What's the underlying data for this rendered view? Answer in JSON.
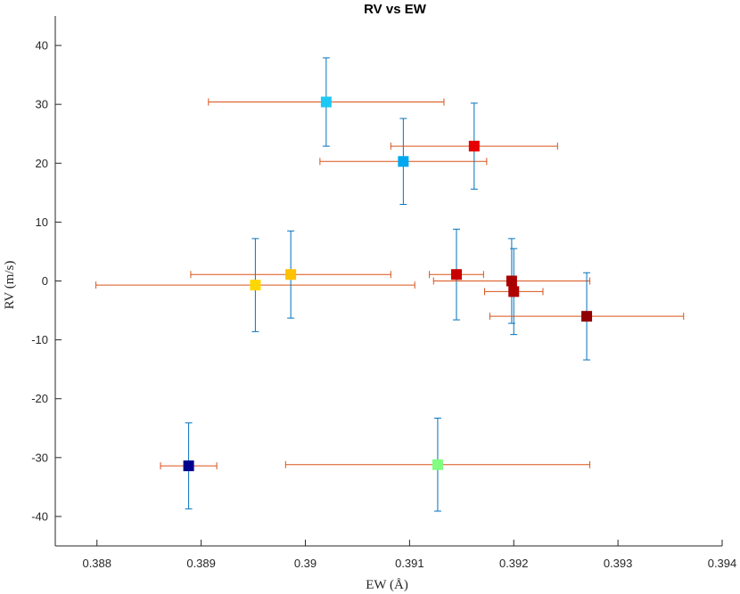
{
  "chart_data": {
    "type": "scatter",
    "title": "RV vs EW",
    "xlabel": "EW (Å)",
    "ylabel": "RV (m/s)",
    "xlim": [
      0.3876,
      0.394
    ],
    "ylim": [
      -45,
      45
    ],
    "xticks": [
      0.388,
      0.389,
      0.39,
      0.391,
      0.392,
      0.393,
      0.394
    ],
    "xtick_labels": [
      "0.388",
      "0.389",
      "0.39",
      "0.391",
      "0.392",
      "0.393",
      "0.394"
    ],
    "yticks": [
      -40,
      -30,
      -20,
      -10,
      0,
      10,
      20,
      30,
      40
    ],
    "ytick_labels": [
      "-40",
      "-30",
      "-20",
      "-10",
      "0",
      "10",
      "20",
      "30",
      "40"
    ],
    "grid": false,
    "errorbar_colors": {
      "x": "#D95319",
      "y": "#0072BD"
    },
    "points": [
      {
        "x": 0.3902,
        "y": 30.4,
        "xerr": 1.13,
        "yerr": 7.5,
        "color": "#1EC8F5"
      },
      {
        "x": 0.39094,
        "y": 20.3,
        "xerr": 0.8,
        "yerr": 7.3,
        "color": "#00A8F0"
      },
      {
        "x": 0.39162,
        "y": 22.9,
        "xerr": 0.8,
        "yerr": 7.3,
        "color": "#E60000"
      },
      {
        "x": 0.38952,
        "y": -0.7,
        "xerr": 1.53,
        "yerr": 7.9,
        "color": "#FFD700"
      },
      {
        "x": 0.38986,
        "y": 1.1,
        "xerr": 0.96,
        "yerr": 7.4,
        "color": "#FFC200"
      },
      {
        "x": 0.39145,
        "y": 1.1,
        "xerr": 0.26,
        "yerr": 7.7,
        "color": "#C80000"
      },
      {
        "x": 0.39198,
        "y": 0.0,
        "xerr": 0.75,
        "yerr": 7.2,
        "color": "#A80000"
      },
      {
        "x": 0.392,
        "y": -1.8,
        "xerr": 0.28,
        "yerr": 7.3,
        "color": "#B00000"
      },
      {
        "x": 0.3927,
        "y": -6.0,
        "xerr": 0.93,
        "yerr": 7.4,
        "color": "#900000"
      },
      {
        "x": 0.38888,
        "y": -31.4,
        "xerr": 0.27,
        "yerr": 7.3,
        "color": "#00008F"
      },
      {
        "x": 0.39127,
        "y": -31.2,
        "xerr": 1.46,
        "yerr": 7.9,
        "color": "#80FF80"
      }
    ],
    "xerr_units": "1e-3 Å"
  }
}
